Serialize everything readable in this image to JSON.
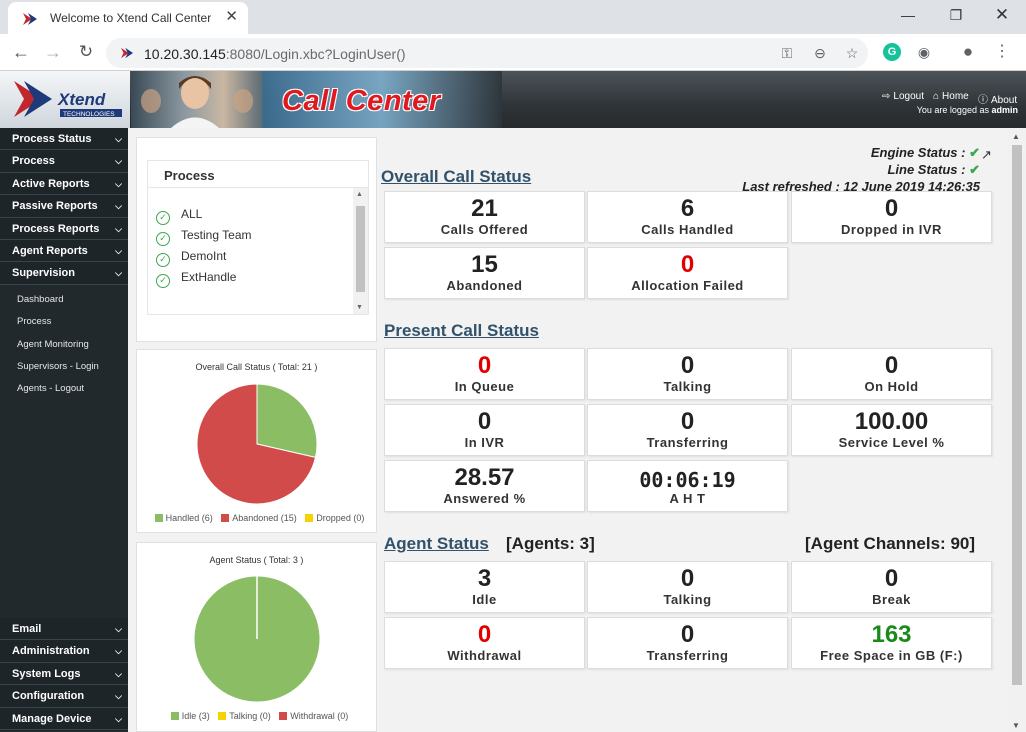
{
  "browser": {
    "tab_title": "Welcome to Xtend Call Center",
    "tab_close": "✕",
    "url_host": "10.20.30.145",
    "url_rest": ":8080/Login.xbc?LoginUser()",
    "grammarly_letter": "G"
  },
  "header": {
    "logo_text": "Xtend",
    "logo_sub": "TECHNOLOGIES",
    "app_title": "Call Center",
    "logout": "Logout",
    "home": "Home",
    "about": "About",
    "logged_prefix": "You are logged as",
    "user": "admin"
  },
  "sidebar": {
    "sections": [
      "Process Status",
      "Process",
      "Active Reports",
      "Passive Reports",
      "Process Reports",
      "Agent Reports",
      "Supervision"
    ],
    "sub_items": [
      "Dashboard",
      "Process",
      "Agent Monitoring",
      "Supervisors - Login",
      "Agents - Logout"
    ],
    "bottom_sections": [
      "Email",
      "Administration",
      "System Logs",
      "Configuration",
      "Manage Device"
    ]
  },
  "process_panel": {
    "title": "Process",
    "items": [
      "ALL",
      "Testing Team",
      "DemoInt",
      "ExtHandle"
    ]
  },
  "charts": {
    "call_title": "Overall Call Status ( Total: 21 )",
    "call_legend": [
      "Handled (6)",
      "Abandoned (15)",
      "Dropped (0)"
    ],
    "agent_title": "Agent Status ( Total: 3 )",
    "agent_legend": [
      "Idle (3)",
      "Talking (0)",
      "Withdrawal (0)"
    ]
  },
  "chart_data": [
    {
      "type": "pie",
      "title": "Overall Call Status ( Total: 21 )",
      "categories": [
        "Handled",
        "Abandoned",
        "Dropped"
      ],
      "values": [
        6,
        15,
        0
      ],
      "colors": [
        "#8bbd64",
        "#d24b4b",
        "#f5d300"
      ],
      "legend": "bottom"
    },
    {
      "type": "pie",
      "title": "Agent Status ( Total: 3 )",
      "categories": [
        "Idle",
        "Talking",
        "Withdrawal"
      ],
      "values": [
        3,
        0,
        0
      ],
      "colors": [
        "#8bbd64",
        "#f5d300",
        "#d24b4b"
      ],
      "legend": "bottom"
    }
  ],
  "status": {
    "engine": "Engine Status :",
    "line": "Line Status :",
    "refreshed": "Last refreshed : 12 June 2019 14:26:35",
    "check": "✔"
  },
  "overall": {
    "title": "Overall Call Status",
    "tiles": [
      {
        "value": "21",
        "label": "Calls Offered"
      },
      {
        "value": "6",
        "label": "Calls Handled"
      },
      {
        "value": "0",
        "label": "Dropped in IVR"
      },
      {
        "value": "15",
        "label": "Abandoned"
      },
      {
        "value": "0",
        "label": "Allocation Failed"
      }
    ]
  },
  "present": {
    "title": "Present Call Status",
    "tiles": [
      {
        "value": "0",
        "label": "In Queue"
      },
      {
        "value": "0",
        "label": "Talking"
      },
      {
        "value": "0",
        "label": "On Hold"
      },
      {
        "value": "0",
        "label": "In IVR"
      },
      {
        "value": "0",
        "label": "Transferring"
      },
      {
        "value": "100.00",
        "label": "Service Level %"
      },
      {
        "value": "28.57",
        "label": "Answered %"
      },
      {
        "value": "00:06:19",
        "label": "A H T"
      }
    ]
  },
  "agent": {
    "title": "Agent Status",
    "agents_count": "[Agents: 3]",
    "channels": "[Agent Channels: 90]",
    "tiles": [
      {
        "value": "3",
        "label": "Idle"
      },
      {
        "value": "0",
        "label": "Talking"
      },
      {
        "value": "0",
        "label": "Break"
      },
      {
        "value": "0",
        "label": "Withdrawal"
      },
      {
        "value": "0",
        "label": "Transferring"
      },
      {
        "value": "163",
        "label": "Free Space in GB (F:)"
      }
    ]
  },
  "colors": {
    "accent_red": "#e00000",
    "accent_green": "#1a8a1a",
    "section_title": "#32526b",
    "sidebar_bg": "#22292d"
  }
}
